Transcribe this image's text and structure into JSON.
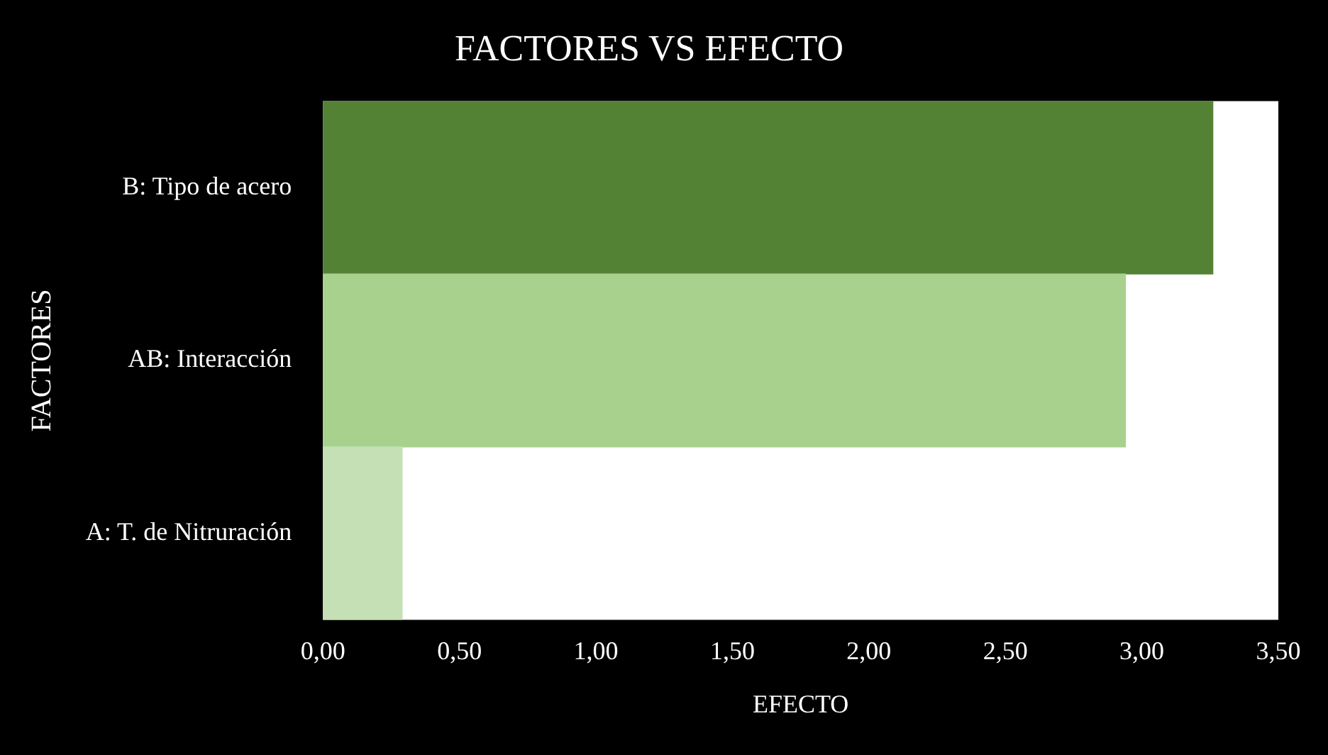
{
  "chart_data": {
    "type": "bar",
    "orientation": "horizontal",
    "title": "FACTORES VS EFECTO",
    "xlabel": "EFECTO",
    "ylabel": "FACTORES",
    "categories": [
      "B: Tipo de acero",
      "AB: Interacción",
      "A: T. de Nitruración"
    ],
    "values": [
      3.26,
      2.94,
      0.29
    ],
    "colors": [
      "#548235",
      "#a9d18e",
      "#c5e0b4"
    ],
    "xlim": [
      0,
      3.5
    ],
    "xticks": [
      {
        "value": 0,
        "label": "0,00"
      },
      {
        "value": 0.5,
        "label": "0,50"
      },
      {
        "value": 1,
        "label": "1,00"
      },
      {
        "value": 1.5,
        "label": "1,50"
      },
      {
        "value": 2,
        "label": "2,00"
      },
      {
        "value": 2.5,
        "label": "2,50"
      },
      {
        "value": 3,
        "label": "3,00"
      },
      {
        "value": 3.5,
        "label": "3,50"
      }
    ],
    "grid": false,
    "legend": false
  }
}
